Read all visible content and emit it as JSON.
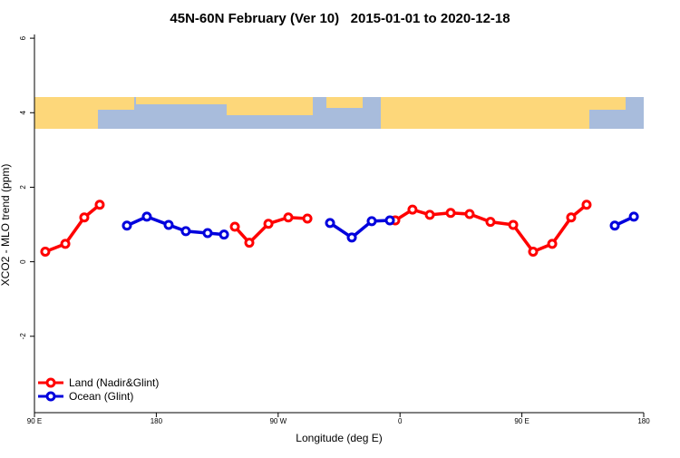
{
  "chart_data": {
    "type": "line",
    "title": "45N-60N February (Ver 10)   2015-01-01 to 2020-12-18",
    "xlabel": "Longitude (deg E)",
    "ylabel": "XCO2 - MLO trend (ppm)",
    "xlim": [
      90,
      540
    ],
    "ylim": [
      -4.05,
      6.1
    ],
    "xticks": [
      {
        "value": 90,
        "label": "90 E"
      },
      180,
      {
        "value": 270,
        "label": "90 W"
      },
      {
        "value": 360,
        "label": "0"
      },
      {
        "value": 450,
        "label": "90 E"
      },
      {
        "value": 540,
        "label": "180"
      }
    ],
    "yticks": [
      -2,
      0,
      2,
      4,
      6
    ],
    "legend": "bottom-left",
    "series": [
      {
        "name": "Land (Nadir&Glint)",
        "color": "#ff0000",
        "x": [
          98,
          112.8,
          126.8,
          138.2,
          null,
          238,
          248.7,
          262.8,
          277.5,
          291.6,
          null,
          356.5,
          369.2,
          382,
          397.4,
          411.4,
          426.8,
          443.6,
          458.3,
          472.4,
          486.4,
          497.8
        ],
        "values": [
          0.27,
          0.48,
          1.19,
          1.53,
          null,
          0.94,
          0.51,
          1.02,
          1.19,
          1.16,
          null,
          1.11,
          1.4,
          1.26,
          1.31,
          1.28,
          1.07,
          0.99,
          0.27,
          0.48,
          1.19,
          1.53
        ]
      },
      {
        "name": "Ocean (Glint)",
        "color": "#0000dd",
        "x": [
          158.3,
          173,
          189.1,
          201.8,
          217.9,
          230,
          null,
          308.3,
          324.4,
          339.1,
          352.5,
          null,
          518.6,
          532.7
        ],
        "values": [
          0.97,
          1.21,
          0.99,
          0.82,
          0.77,
          0.73,
          null,
          1.04,
          0.65,
          1.09,
          1.11,
          null,
          0.97,
          1.21
        ]
      }
    ]
  }
}
